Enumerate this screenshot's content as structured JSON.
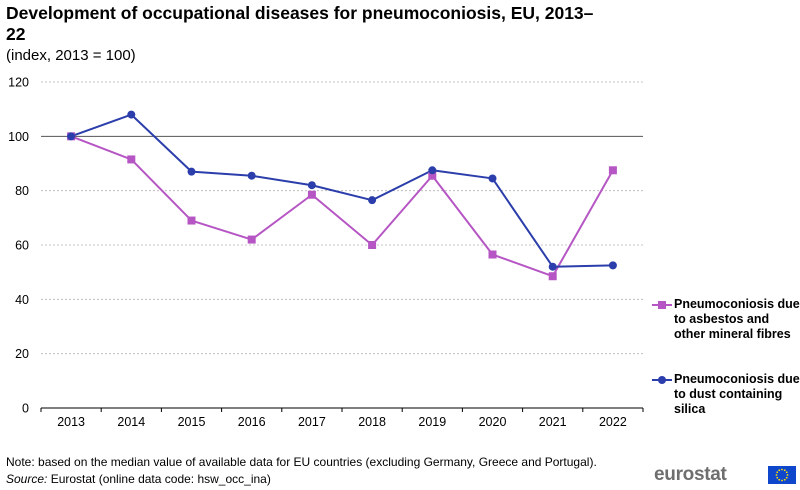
{
  "chart_data": {
    "type": "line",
    "title": "Development of occupational diseases for pneumoconiosis, EU, 2013–22",
    "subtitle": "(index, 2013 = 100)",
    "categories": [
      "2013",
      "2014",
      "2015",
      "2016",
      "2017",
      "2018",
      "2019",
      "2020",
      "2021",
      "2022"
    ],
    "ylim": [
      0,
      120
    ],
    "yticks": [
      0,
      20,
      40,
      60,
      80,
      100,
      120
    ],
    "grid": true,
    "legend_position": "right",
    "series": [
      {
        "name": "Pneumoconiosis due to asbestos and other mineral fibres",
        "color": "#b656c4",
        "marker": "square",
        "values": [
          100,
          91.5,
          69,
          62,
          78.5,
          60,
          85.5,
          56.5,
          48.5,
          87.5
        ]
      },
      {
        "name": "Pneumoconiosis due to dust containing silica",
        "color": "#2b3eab",
        "marker": "circle",
        "values": [
          100,
          108,
          87,
          85.5,
          82,
          76.5,
          87.5,
          84.5,
          52,
          52.5
        ]
      }
    ]
  },
  "footer": {
    "note": "Note: based on the median value of available data for EU countries (excluding Germany, Greece and Portugal).",
    "source_label": "Source:",
    "source_text": " Eurostat (online data code: hsw_occ_ina)",
    "logo_text": "eurostat"
  }
}
